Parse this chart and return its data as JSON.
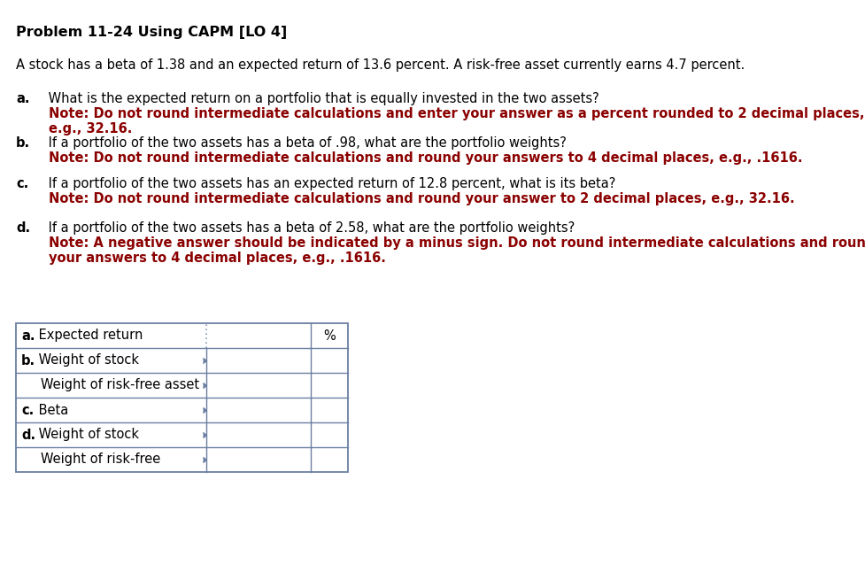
{
  "title": "Problem 11-24 Using CAPM [LO 4]",
  "bg_color": "#ffffff",
  "text_color": "#000000",
  "red_color": "#8b0000",
  "border_color": "#6b7fa3",
  "dot_color": "#8899bb",
  "paragraph_intro": "A stock has a beta of 1.38 and an expected return of 13.6 percent. A risk-free asset currently earns 4.7 percent.",
  "questions": [
    {
      "label": "a.",
      "text": " What is the expected return on a portfolio that is equally invested in the two assets?",
      "note_lines": [
        "Note: Do not round intermediate calculations and enter your answer as a percent rounded to 2 decimal places,",
        "e.g., 32.16."
      ]
    },
    {
      "label": "b.",
      "text": " If a portfolio of the two assets has a beta of .98, what are the portfolio weights?",
      "note_lines": [
        "Note: Do not round intermediate calculations and round your answers to 4 decimal places, e.g., .1616."
      ]
    },
    {
      "label": "c.",
      "text": " If a portfolio of the two assets has an expected return of 12.8 percent, what is its beta?",
      "note_lines": [
        "Note: Do not round intermediate calculations and round your answer to 2 decimal places, e.g., 32.16."
      ]
    },
    {
      "label": "d.",
      "text": " If a portfolio of the two assets has a beta of 2.58, what are the portfolio weights?",
      "note_lines": [
        "Note: A negative answer should be indicated by a minus sign. Do not round intermediate calculations and round",
        "your answers to 4 decimal places, e.g., .1616."
      ]
    }
  ],
  "table_rows": [
    {
      "label": "a. Expected return",
      "label_bold": "a.",
      "label_rest": " Expected return",
      "indent": false,
      "has_percent": true
    },
    {
      "label": "b. Weight of stock",
      "label_bold": "b.",
      "label_rest": " Weight of stock",
      "indent": false,
      "has_percent": false
    },
    {
      "label": "Weight of risk-free asset",
      "label_bold": "",
      "label_rest": "Weight of risk-free asset",
      "indent": true,
      "has_percent": false
    },
    {
      "label": "c. Beta",
      "label_bold": "c.",
      "label_rest": " Beta",
      "indent": false,
      "has_percent": false
    },
    {
      "label": "d. Weight of stock",
      "label_bold": "d.",
      "label_rest": " Weight of stock",
      "indent": false,
      "has_percent": false
    },
    {
      "label": "Weight of risk-free",
      "label_bold": "",
      "label_rest": "Weight of risk-free",
      "indent": true,
      "has_percent": false
    }
  ],
  "title_fs": 11.5,
  "body_fs": 10.5,
  "note_fs": 10.5
}
